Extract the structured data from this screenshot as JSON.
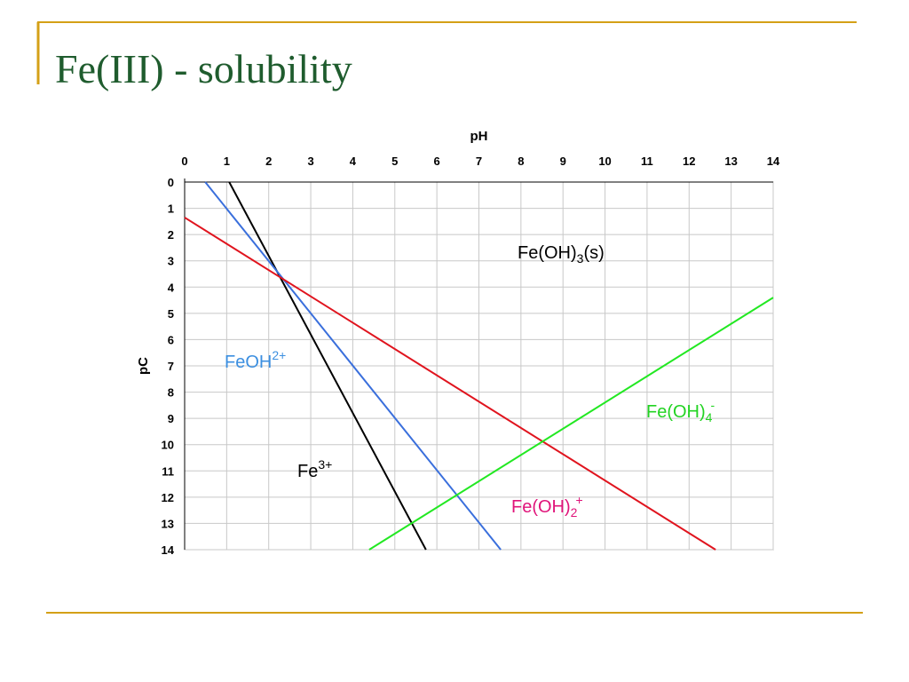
{
  "title": "Fe(III) - solubility",
  "chart_data": {
    "type": "line",
    "xlabel": "pH",
    "ylabel": "pC",
    "xlim": [
      0,
      14
    ],
    "ylim": [
      0,
      14
    ],
    "y_inverted": true,
    "x_axis_position": "top",
    "xticks": [
      0,
      1,
      2,
      3,
      4,
      5,
      6,
      7,
      8,
      9,
      10,
      11,
      12,
      13,
      14
    ],
    "yticks": [
      0,
      1,
      2,
      3,
      4,
      5,
      6,
      7,
      8,
      9,
      10,
      11,
      12,
      13,
      14
    ],
    "grid": true,
    "series": [
      {
        "color": "#000000",
        "x": [
          1.06,
          5.74
        ],
        "values": [
          0,
          14
        ]
      },
      {
        "color": "#3a6fdc",
        "x": [
          0.49,
          7.52
        ],
        "values": [
          0,
          14
        ]
      },
      {
        "color": "#e0141e",
        "x": [
          0,
          12.63
        ],
        "values": [
          1.35,
          14
        ]
      },
      {
        "color": "#22e822",
        "x": [
          4.39,
          14
        ],
        "values": [
          14,
          4.4
        ]
      }
    ],
    "annotations": [
      {
        "base": "Fe(OH)",
        "sub": "3",
        "rest": "(s)",
        "color": "#000000"
      },
      {
        "base": "FeOH",
        "sup": "2+",
        "color": "#3c8fe0"
      },
      {
        "base": "Fe",
        "sup": "3+",
        "color": "#000000"
      },
      {
        "base": "Fe(OH)",
        "sub": "4",
        "sup": "-",
        "color": "#22d322"
      },
      {
        "base": "Fe(OH)",
        "sub": "2",
        "sup": "+",
        "color": "#e0147a"
      }
    ]
  }
}
